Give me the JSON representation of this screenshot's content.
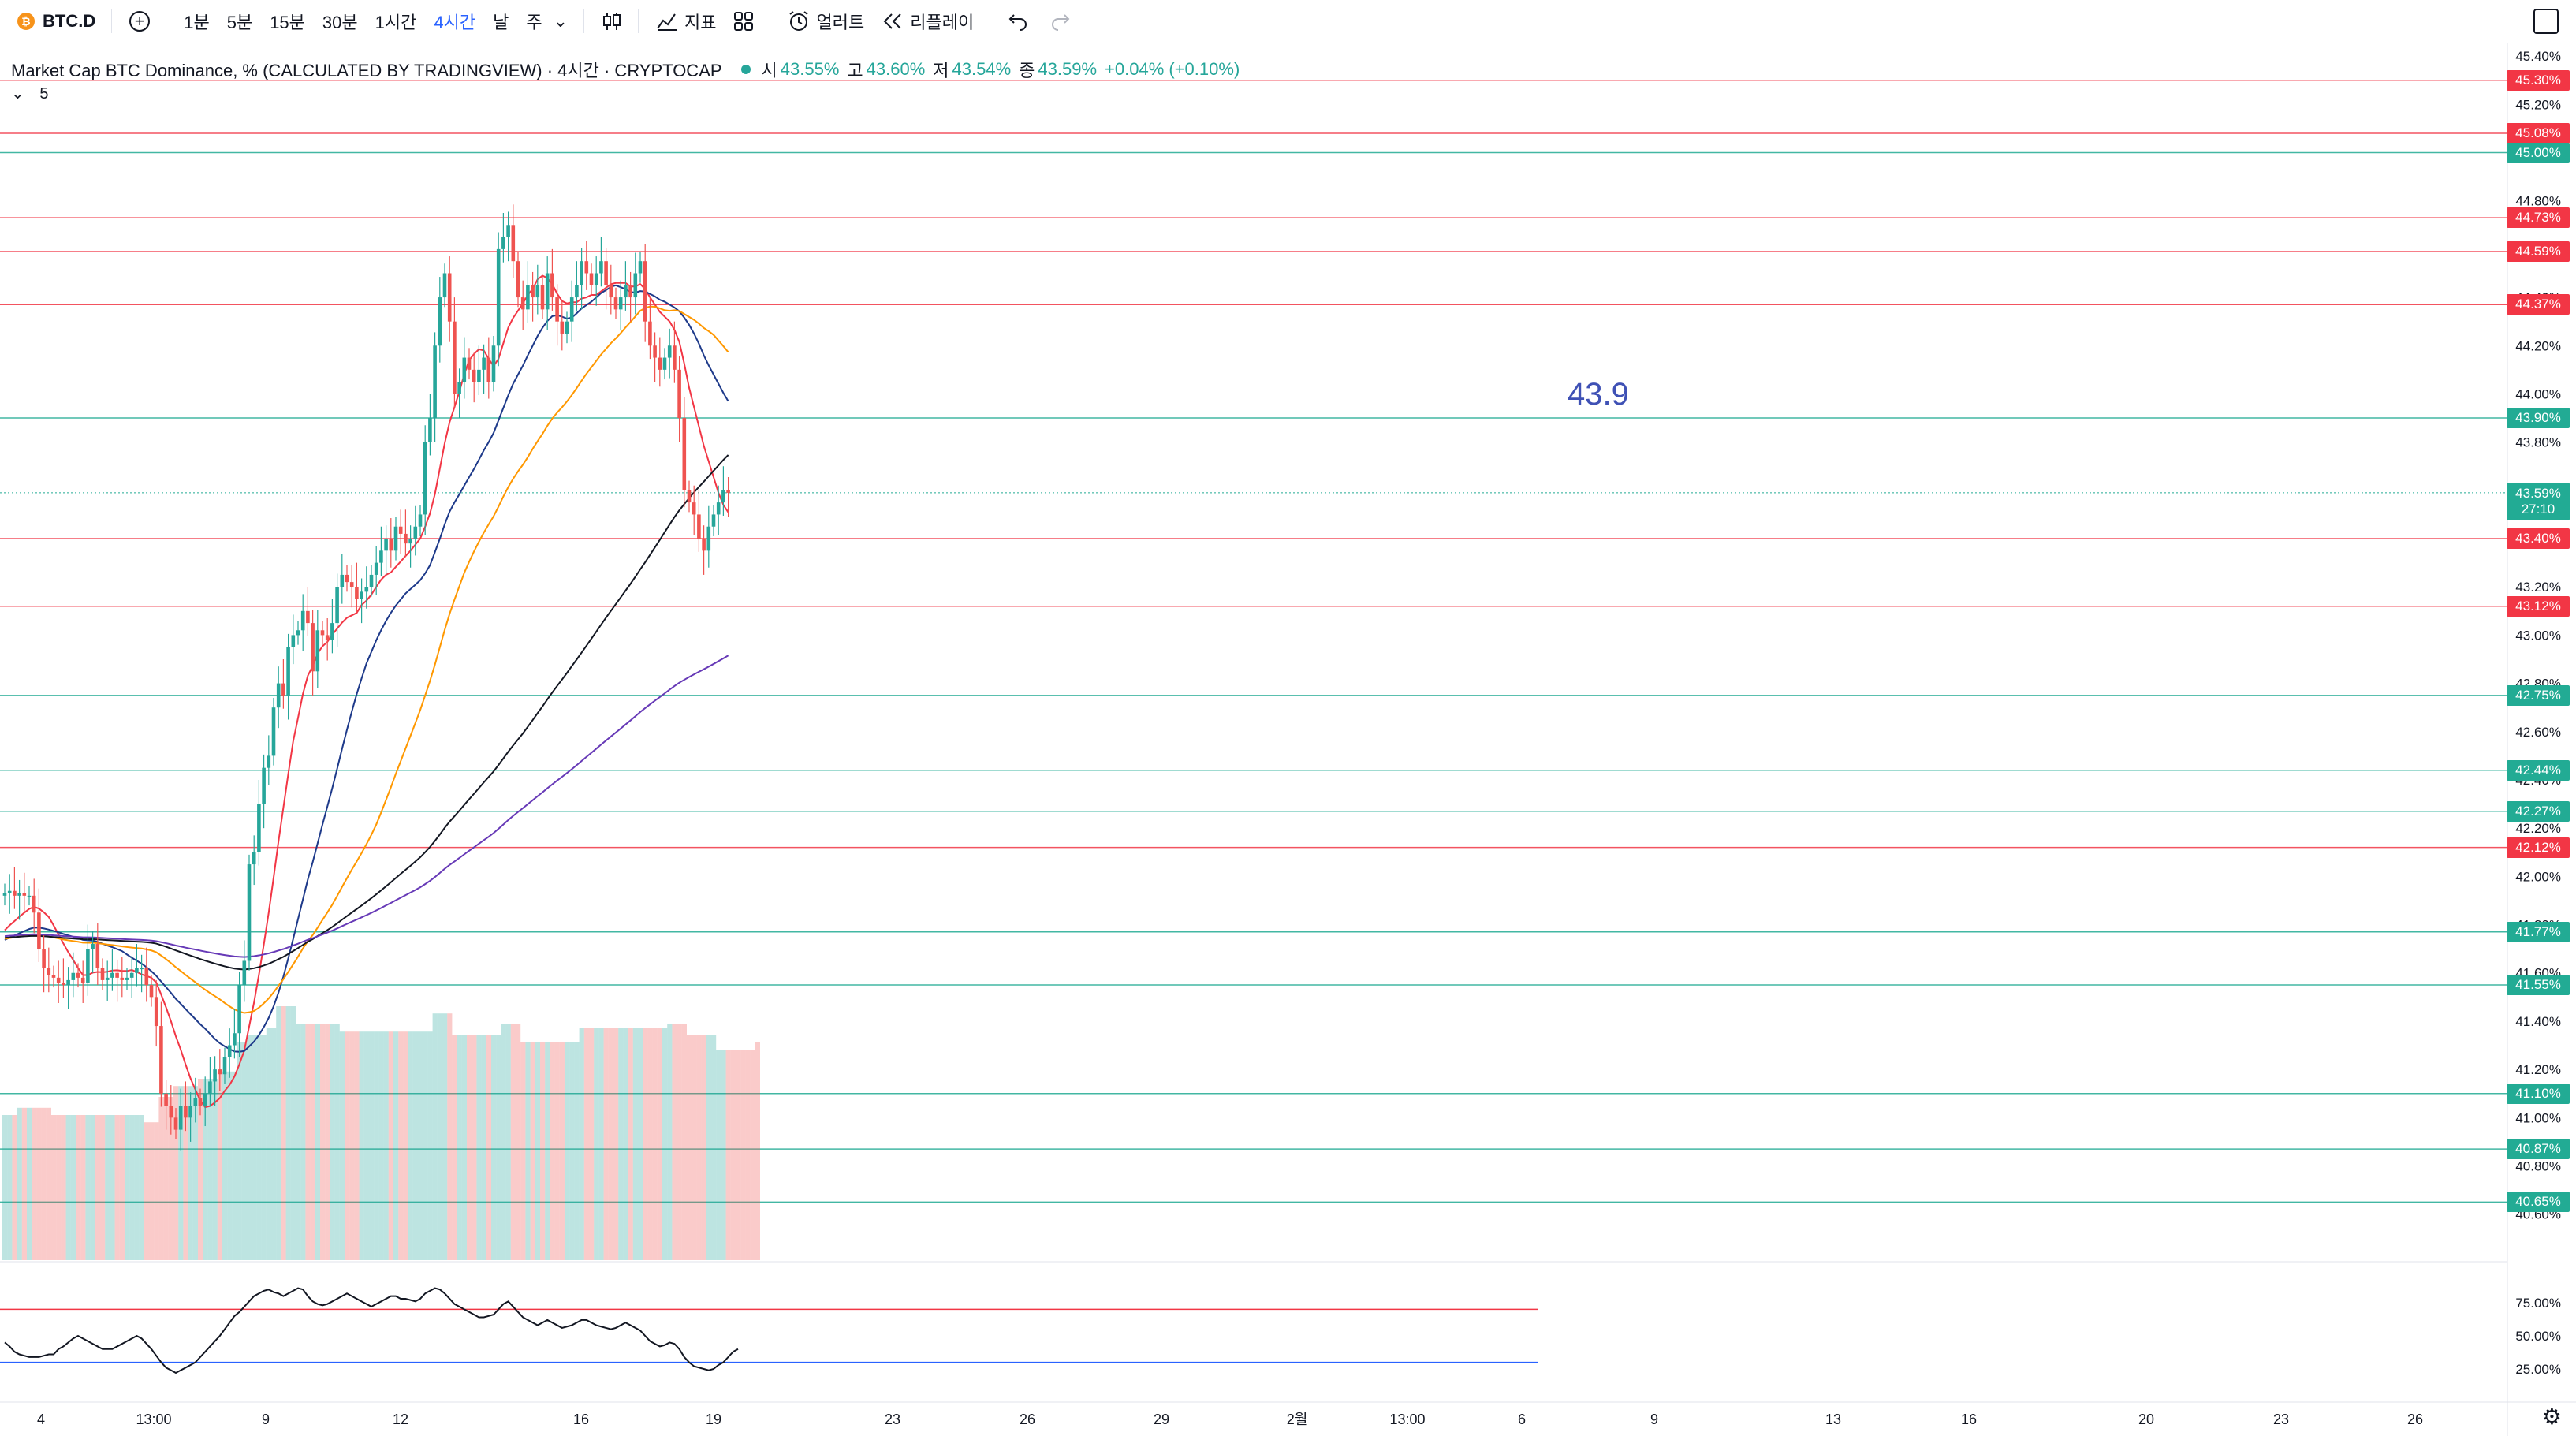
{
  "toolbar": {
    "symbol": "BTC.D",
    "symbol_badge": "₿",
    "add_icon": "+",
    "intervals": [
      "1분",
      "5분",
      "15분",
      "30분",
      "1시간",
      "4시간",
      "날",
      "주"
    ],
    "active_interval": "4시간",
    "chevron": "⌄",
    "indicators_label": "지표",
    "alert_label": "얼러트",
    "replay_label": "리플레이"
  },
  "legend": {
    "title": "Market Cap BTC Dominance, % (CALCULATED BY TRADINGVIEW) · 4시간 · CRYPTOCAP",
    "open_label": "시",
    "open": "43.55%",
    "high_label": "고",
    "high": "43.60%",
    "low_label": "저",
    "low": "43.54%",
    "close_label": "종",
    "close": "43.59%",
    "change": "+0.04% (+0.10%)",
    "ma_chevron": "⌄",
    "ma_value": "5"
  },
  "annotation": "43.9",
  "price_axis_ticks": [
    "45.40%",
    "45.20%",
    "45.00%",
    "44.80%",
    "44.60%",
    "44.40%",
    "44.20%",
    "44.00%",
    "43.80%",
    "43.60%",
    "43.40%",
    "43.20%",
    "43.00%",
    "42.80%",
    "42.60%",
    "42.40%",
    "42.20%",
    "42.00%",
    "41.80%",
    "41.60%",
    "41.40%",
    "41.20%",
    "41.00%",
    "40.80%",
    "40.60%"
  ],
  "horizontal_levels": [
    {
      "price": 45.3,
      "label": "45.30%",
      "color": "#f23645"
    },
    {
      "price": 45.08,
      "label": "45.08%",
      "color": "#f23645"
    },
    {
      "price": 45.0,
      "label": "45.00%",
      "color": "#22ab94"
    },
    {
      "price": 44.73,
      "label": "44.73%",
      "color": "#f23645"
    },
    {
      "price": 44.59,
      "label": "44.59%",
      "color": "#f23645"
    },
    {
      "price": 44.37,
      "label": "44.37%",
      "color": "#f23645"
    },
    {
      "price": 43.9,
      "label": "43.90%",
      "color": "#22ab94"
    },
    {
      "price": 43.4,
      "label": "43.40%",
      "color": "#f23645"
    },
    {
      "price": 43.12,
      "label": "43.12%",
      "color": "#f23645"
    },
    {
      "price": 42.75,
      "label": "42.75%",
      "color": "#22ab94"
    },
    {
      "price": 42.44,
      "label": "42.44%",
      "color": "#22ab94"
    },
    {
      "price": 42.27,
      "label": "42.27%",
      "color": "#22ab94"
    },
    {
      "price": 42.12,
      "label": "42.12%",
      "color": "#f23645"
    },
    {
      "price": 41.77,
      "label": "41.77%",
      "color": "#22ab94"
    },
    {
      "price": 41.55,
      "label": "41.55%",
      "color": "#22ab94"
    },
    {
      "price": 41.1,
      "label": "41.10%",
      "color": "#22ab94"
    },
    {
      "price": 40.87,
      "label": "40.87%",
      "color": "#22ab94"
    },
    {
      "price": 40.65,
      "label": "40.65%",
      "color": "#22ab94"
    }
  ],
  "current_price": {
    "label": "43.59%",
    "countdown": "27:10",
    "color": "#22ab94",
    "price": 43.59
  },
  "rsi_axis_ticks": [
    "75.00%",
    "50.00%",
    "25.00%"
  ],
  "time_axis_labels": [
    "4",
    "13:00",
    "9",
    "12",
    "16",
    "19",
    "23",
    "26",
    "29",
    "2월",
    "13:00",
    "6",
    "9",
    "13",
    "16",
    "20",
    "23",
    "26"
  ],
  "colors": {
    "up": "#26a69a",
    "down": "#ef5350",
    "ma_red": "#f23645",
    "ma_blue": "#1e3a8a",
    "ma_orange": "#ff9800",
    "ma_black": "#131722",
    "ma_purple": "#673ab7",
    "rsi": "#131722"
  },
  "chart_data": {
    "type": "candlestick",
    "title": "Market Cap BTC Dominance, % (CALCULATED BY TRADINGVIEW)",
    "interval": "4시간",
    "ylim": [
      40.55,
      45.42
    ],
    "close_series": [
      41.93,
      41.94,
      41.92,
      41.93,
      41.92,
      41.92,
      41.85,
      41.7,
      41.62,
      41.59,
      41.58,
      41.56,
      41.55,
      41.57,
      41.6,
      41.58,
      41.56,
      41.7,
      41.72,
      41.62,
      41.57,
      41.58,
      41.6,
      41.58,
      41.57,
      41.58,
      41.6,
      41.62,
      41.62,
      41.55,
      41.5,
      41.38,
      41.1,
      41.05,
      41.0,
      40.95,
      41.05,
      41.0,
      41.05,
      41.08,
      41.05,
      41.1,
      41.15,
      41.2,
      41.18,
      41.25,
      41.3,
      41.35,
      41.55,
      41.65,
      42.05,
      42.1,
      42.3,
      42.45,
      42.5,
      42.7,
      42.8,
      42.75,
      42.95,
      43.0,
      43.02,
      43.1,
      43.05,
      42.85,
      43.02,
      43.0,
      42.98,
      43.05,
      43.2,
      43.25,
      43.22,
      43.2,
      43.15,
      43.18,
      43.2,
      43.25,
      43.3,
      43.35,
      43.4,
      43.35,
      43.45,
      43.42,
      43.38,
      43.4,
      43.45,
      43.5,
      43.8,
      43.9,
      44.2,
      44.4,
      44.5,
      44.3,
      44.0,
      44.05,
      44.15,
      44.1,
      44.05,
      44.1,
      44.15,
      44.05,
      44.2,
      44.6,
      44.65,
      44.7,
      44.55,
      44.4,
      44.35,
      44.45,
      44.4,
      44.45,
      44.35,
      44.5,
      44.4,
      44.3,
      44.25,
      44.3,
      44.4,
      44.45,
      44.55,
      44.5,
      44.45,
      44.5,
      44.55,
      44.45,
      44.4,
      44.35,
      44.4,
      44.45,
      44.4,
      44.5,
      44.55,
      44.3,
      44.2,
      44.15,
      44.1,
      44.15,
      44.2,
      44.1,
      43.9,
      43.6,
      43.55,
      43.5,
      43.4,
      43.35,
      43.45,
      43.5,
      43.55,
      43.6,
      43.59
    ],
    "volume_series": [
      40,
      40,
      40,
      42,
      42,
      42,
      42,
      42,
      42,
      42,
      40,
      40,
      40,
      40,
      40,
      40,
      40,
      40,
      40,
      40,
      40,
      40,
      40,
      40,
      40,
      40,
      40,
      40,
      40,
      38,
      38,
      38,
      45,
      45,
      45,
      48,
      48,
      48,
      48,
      48,
      50,
      50,
      50,
      50,
      52,
      52,
      52,
      52,
      60,
      60,
      62,
      62,
      62,
      62,
      64,
      64,
      70,
      70,
      70,
      70,
      65,
      65,
      65,
      65,
      65,
      65,
      65,
      65,
      65,
      63,
      63,
      63,
      63,
      63,
      63,
      63,
      63,
      63,
      63,
      63,
      63,
      63,
      63,
      63,
      63,
      63,
      63,
      63,
      68,
      68,
      68,
      68,
      62,
      62,
      62,
      62,
      62,
      62,
      62,
      62,
      62,
      62,
      65,
      65,
      65,
      65,
      60,
      60,
      60,
      60,
      60,
      60,
      60,
      60,
      60,
      60,
      60,
      60,
      64,
      64,
      64,
      64,
      64,
      64,
      64,
      64,
      64,
      64,
      64,
      64,
      64,
      64,
      64,
      64,
      64,
      64,
      65,
      65,
      65,
      65,
      62,
      62,
      62,
      62,
      62,
      62,
      58,
      58,
      58,
      58,
      58,
      58,
      58,
      58,
      60
    ],
    "ma_series_labels": [
      "MA red",
      "MA blue",
      "MA orange",
      "MA black",
      "MA purple"
    ],
    "rsi_series": [
      45,
      42,
      38,
      36,
      35,
      34,
      34,
      34,
      35,
      36,
      36,
      40,
      42,
      45,
      48,
      50,
      48,
      46,
      44,
      42,
      40,
      40,
      40,
      42,
      44,
      46,
      48,
      50,
      48,
      44,
      40,
      35,
      30,
      26,
      24,
      22,
      24,
      26,
      28,
      30,
      34,
      38,
      42,
      46,
      50,
      55,
      60,
      65,
      68,
      72,
      76,
      80,
      82,
      84,
      85,
      83,
      82,
      80,
      82,
      84,
      86,
      85,
      80,
      76,
      74,
      73,
      74,
      76,
      78,
      80,
      82,
      80,
      78,
      76,
      74,
      72,
      74,
      76,
      78,
      80,
      80,
      78,
      78,
      77,
      76,
      78,
      82,
      84,
      86,
      85,
      82,
      78,
      74,
      72,
      70,
      68,
      66,
      64,
      64,
      65,
      66,
      70,
      74,
      76,
      72,
      68,
      64,
      62,
      60,
      58,
      60,
      62,
      60,
      58,
      56,
      57,
      58,
      60,
      62,
      62,
      60,
      58,
      57,
      56,
      55,
      56,
      58,
      60,
      58,
      56,
      54,
      50,
      46,
      44,
      42,
      43,
      45,
      44,
      40,
      34,
      30,
      27,
      26,
      25,
      24,
      25,
      28,
      30,
      34,
      38,
      40
    ]
  }
}
